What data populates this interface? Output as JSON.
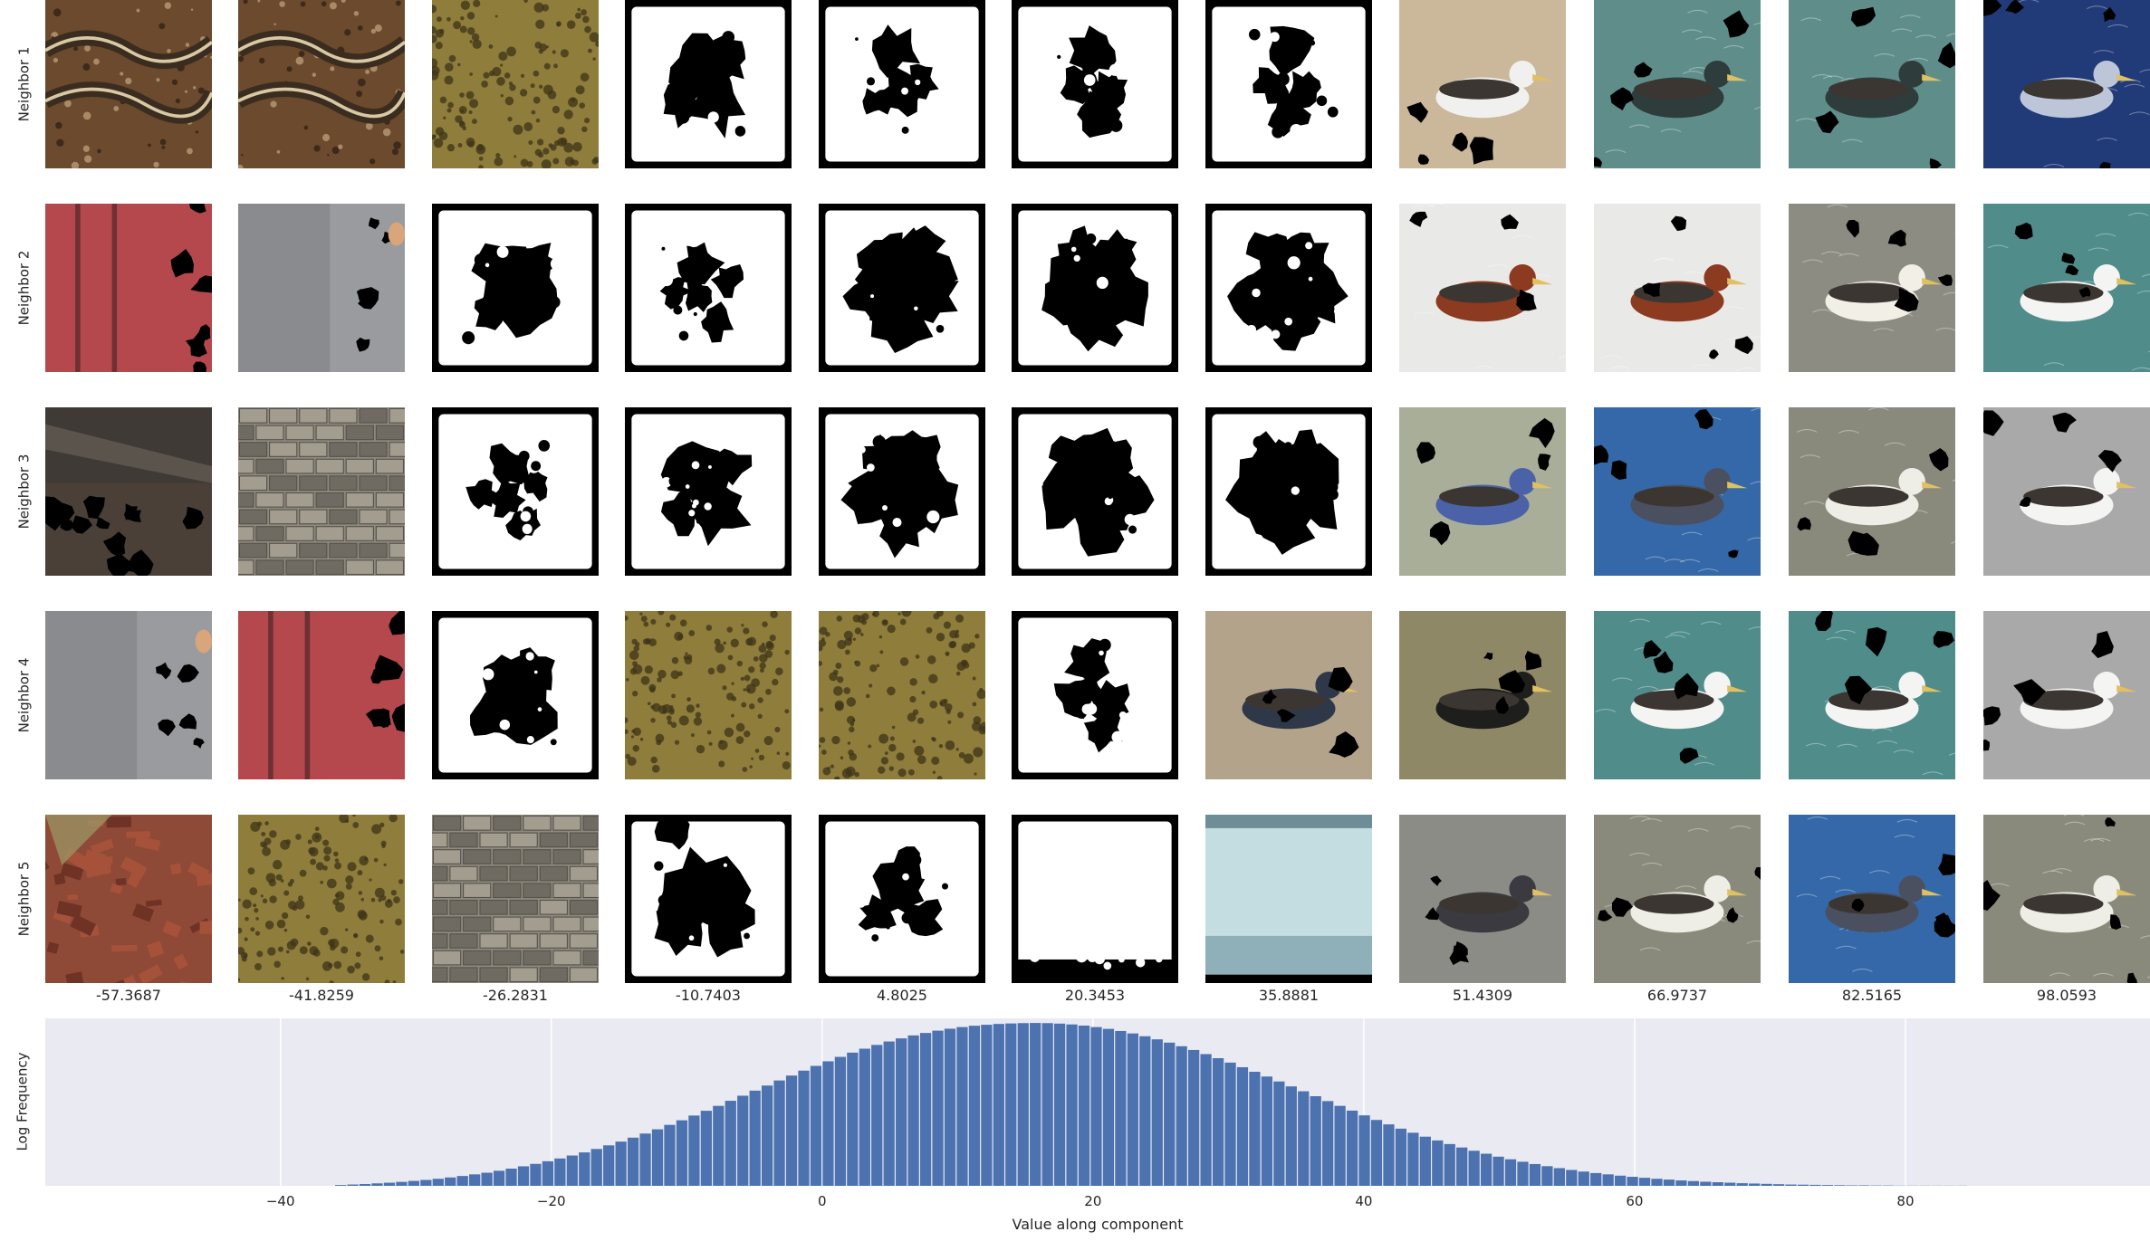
{
  "row_labels": [
    "Neighbor 1",
    "Neighbor 2",
    "Neighbor 3",
    "Neighbor 4",
    "Neighbor 5"
  ],
  "column_values": [
    "-57.3687",
    "-41.8259",
    "-26.2831",
    "-10.7403",
    "4.8025",
    "20.3453",
    "35.8881",
    "51.4309",
    "66.9737",
    "82.5165",
    "98.0593"
  ],
  "tiles": [
    [
      "snake-on-soil",
      "snake-on-soil",
      "olive-texture",
      "mask-blob",
      "mask-hook",
      "mask-ring",
      "mask-ring",
      "gull-on-beach",
      "duck-on-water",
      "duck-on-water",
      "bird-dark-water"
    ],
    [
      "red-metal-wall",
      "gray-concrete",
      "mask-blob",
      "mask-bird-shape",
      "mask-square-blob",
      "mask-square-blob",
      "mask-square-blob",
      "duck-redhead",
      "duck-redhead",
      "albatross-water",
      "albatross-teal"
    ],
    [
      "rail-track",
      "stone-wall",
      "mask-bird-shape",
      "mask-blob",
      "mask-square-blob",
      "mask-square-blob",
      "mask-square-blob",
      "blue-bird",
      "blue-bird-water",
      "albatross-gray-water",
      "albatross-gray"
    ],
    [
      "gray-concrete",
      "red-metal-wall",
      "mask-blob",
      "olive-texture",
      "olive-texture",
      "mask-cross",
      "seabird-beach",
      "crow-on-sand",
      "albatross-teal",
      "albatross-teal",
      "albatross-gray"
    ],
    [
      "bricks-rubble",
      "olive-texture",
      "stone-wall",
      "mask-dark-blob",
      "mask-star",
      "mask-white",
      "pale-sky",
      "crow-flying",
      "albatross-gray-water",
      "blue-bird-water",
      "albatross-gray-water"
    ]
  ],
  "tile_colors": {
    "snake-on-soil": [
      "#6b4a2e",
      "#a08060"
    ],
    "olive-texture": [
      "#8f7d3c",
      "#3d3418"
    ],
    "red-metal-wall": [
      "#b5484c",
      "#d98a80"
    ],
    "gray-concrete": [
      "#8a8b8e",
      "#b4b6b8"
    ],
    "rail-track": [
      "#4a4038",
      "#cfcfd0"
    ],
    "stone-wall": [
      "#8e8a7e",
      "#6f6b62"
    ],
    "bricks-rubble": [
      "#8e4a36",
      "#c9a090"
    ],
    "gull-on-beach": [
      "#cbb89a",
      "#f0f0ee"
    ],
    "duck-on-water": [
      "#5f8e8a",
      "#2f3c3c"
    ],
    "bird-dark-water": [
      "#213a78",
      "#bcc6d8"
    ],
    "duck-redhead": [
      "#e9e9e7",
      "#8c3a20"
    ],
    "albatross-water": [
      "#8c8c82",
      "#f2f0e6"
    ],
    "albatross-teal": [
      "#4f8c8a",
      "#f4f4f2"
    ],
    "blue-bird": [
      "#a8ae98",
      "#4c62a8"
    ],
    "blue-bird-water": [
      "#3568a8",
      "#4a5060"
    ],
    "albatross-gray-water": [
      "#8a8a7c",
      "#efeee6"
    ],
    "albatross-gray": [
      "#a9a9a9",
      "#f4f4f2"
    ],
    "seabird-beach": [
      "#b3a38a",
      "#2e3848"
    ],
    "crow-on-sand": [
      "#8e8866",
      "#1e1e1c"
    ],
    "crow-flying": [
      "#8c8c86",
      "#3a3a40"
    ],
    "pale-sky": [
      "#c4dde0",
      "#8fb0b8"
    ]
  },
  "chart_data": {
    "type": "bar",
    "xlabel": "Value along component",
    "ylabel": "Log Frequency",
    "xlim": [
      -57.3687,
      98.0593
    ],
    "x_ticks": [
      -40,
      -20,
      0,
      20,
      40,
      60,
      80
    ],
    "x_tick_labels": [
      "−40",
      "−20",
      "0",
      "20",
      "40",
      "60",
      "80"
    ],
    "grid": true,
    "bar_color": "#4c72b0",
    "background_color": "#eaeaf2",
    "bins": {
      "start": -36,
      "width": 0.9,
      "note": "approximately normal distribution centered near -1.5 with std ~11; bar heights in relative frequency (0-1)",
      "heights": [
        0.005,
        0.008,
        0.011,
        0.015,
        0.019,
        0.024,
        0.03,
        0.036,
        0.043,
        0.051,
        0.06,
        0.07,
        0.08,
        0.092,
        0.105,
        0.119,
        0.134,
        0.15,
        0.167,
        0.185,
        0.204,
        0.225,
        0.247,
        0.27,
        0.294,
        0.319,
        0.345,
        0.372,
        0.4,
        0.429,
        0.458,
        0.488,
        0.519,
        0.55,
        0.581,
        0.612,
        0.643,
        0.673,
        0.703,
        0.732,
        0.76,
        0.787,
        0.813,
        0.837,
        0.86,
        0.881,
        0.9,
        0.918,
        0.933,
        0.947,
        0.959,
        0.969,
        0.977,
        0.983,
        0.988,
        0.991,
        0.993,
        0.994,
        0.993,
        0.99,
        0.985,
        0.978,
        0.969,
        0.958,
        0.945,
        0.93,
        0.913,
        0.894,
        0.874,
        0.852,
        0.829,
        0.804,
        0.779,
        0.752,
        0.724,
        0.696,
        0.667,
        0.637,
        0.607,
        0.577,
        0.547,
        0.517,
        0.488,
        0.459,
        0.43,
        0.402,
        0.375,
        0.349,
        0.324,
        0.3,
        0.277,
        0.255,
        0.234,
        0.214,
        0.196,
        0.178,
        0.162,
        0.147,
        0.133,
        0.12,
        0.108,
        0.097,
        0.087,
        0.078,
        0.07,
        0.062,
        0.055,
        0.049,
        0.043,
        0.038,
        0.033,
        0.029,
        0.025,
        0.022,
        0.019,
        0.016,
        0.014,
        0.012,
        0.01,
        0.008,
        0.007,
        0.006,
        0.005,
        0.004,
        0.003,
        0.003,
        0.002,
        0.002,
        0.001,
        0.001,
        0.001,
        0.001,
        0.001,
        0.001
      ]
    }
  }
}
